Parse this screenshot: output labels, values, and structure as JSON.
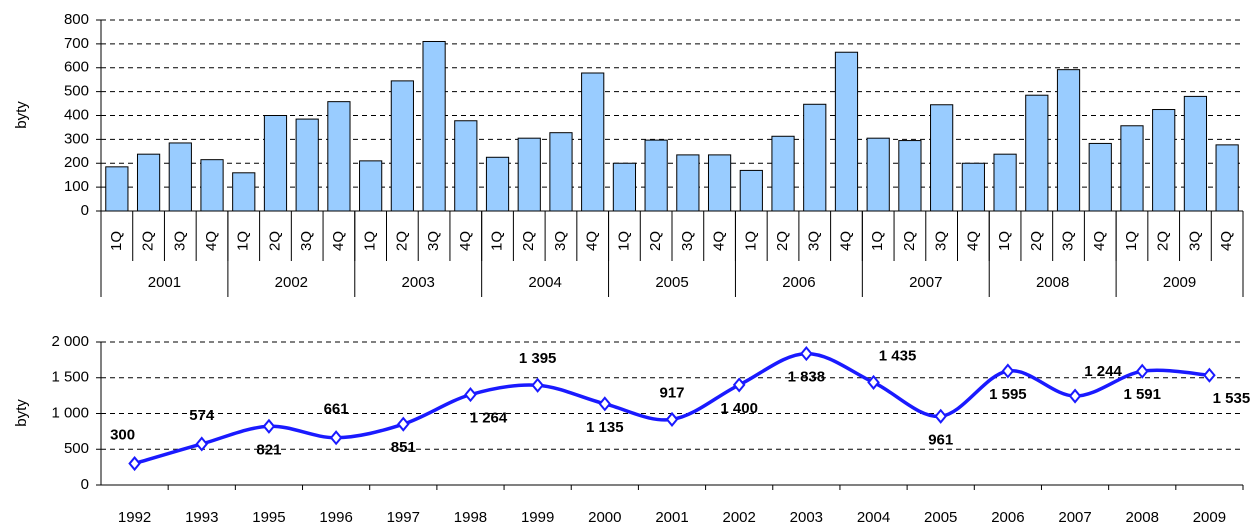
{
  "chart_data": [
    {
      "type": "bar",
      "y_label": "byty",
      "categories": [
        "1Q",
        "2Q",
        "3Q",
        "4Q",
        "1Q",
        "2Q",
        "3Q",
        "4Q",
        "1Q",
        "2Q",
        "3Q",
        "4Q",
        "1Q",
        "2Q",
        "3Q",
        "4Q",
        "1Q",
        "2Q",
        "3Q",
        "4Q",
        "1Q",
        "2Q",
        "3Q",
        "4Q",
        "1Q",
        "2Q",
        "3Q",
        "4Q",
        "1Q",
        "2Q",
        "3Q",
        "4Q",
        "1Q",
        "2Q",
        "3Q",
        "4Q"
      ],
      "groups": [
        "2001",
        "2002",
        "2003",
        "2004",
        "2005",
        "2006",
        "2007",
        "2008",
        "2009"
      ],
      "values": [
        185,
        238,
        285,
        215,
        160,
        400,
        385,
        458,
        210,
        545,
        710,
        378,
        225,
        305,
        328,
        578,
        200,
        297,
        235,
        235,
        170,
        313,
        447,
        665,
        305,
        295,
        445,
        200,
        238,
        485,
        592,
        283,
        357,
        425,
        480,
        277
      ],
      "color": "#99ccff",
      "ylim": [
        0,
        800
      ],
      "yticks": [
        0,
        100,
        200,
        300,
        400,
        500,
        600,
        700,
        800
      ],
      "grid": true
    },
    {
      "type": "line",
      "y_label": "byty",
      "categories": [
        "1992",
        "1993",
        "1995",
        "1996",
        "1997",
        "1998",
        "1999",
        "2000",
        "2001",
        "2002",
        "2003",
        "2004",
        "2005",
        "2006",
        "2007",
        "2008",
        "2009"
      ],
      "values": [
        300,
        574,
        821,
        661,
        851,
        1264,
        1395,
        1135,
        917,
        1400,
        1838,
        1435,
        961,
        1595,
        1244,
        1591,
        1535
      ],
      "value_labels": [
        "300",
        "574",
        "821",
        "661",
        "851",
        "1 264",
        "1 395",
        "1 135",
        "917",
        "1 400",
        "1 838",
        "1 435",
        "961",
        "1 595",
        "1 244",
        "1 591",
        "1 535"
      ],
      "color": "#1a1aff",
      "ylim": [
        0,
        2000
      ],
      "yticks": [
        0,
        500,
        {
          "value": 1000,
          "label": "1 000"
        },
        {
          "value": 1500,
          "label": "1 500"
        },
        {
          "value": 2000,
          "label": "2 000"
        }
      ],
      "grid": true
    }
  ]
}
